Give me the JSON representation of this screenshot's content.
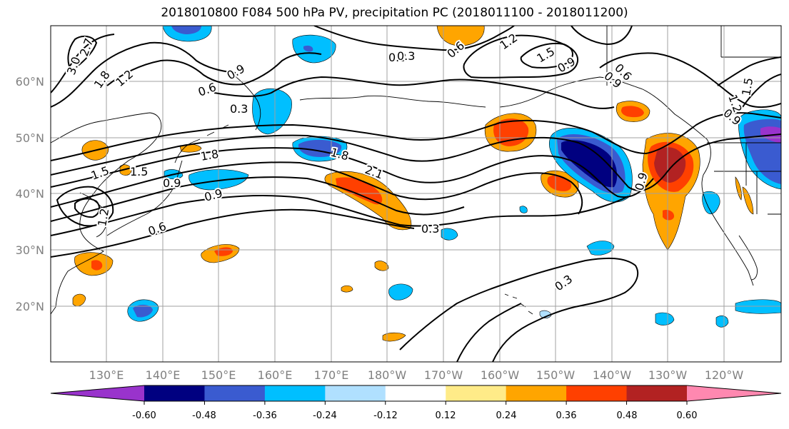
{
  "title": "2018010800 F084 500 hPa PV, precipitation PC (2018011100 - 2018011200)",
  "lat_labels": [
    "60°N",
    "50°N",
    "40°N",
    "30°N",
    "20°N"
  ],
  "lon_labels": [
    "130°E",
    "140°E",
    "150°E",
    "160°E",
    "170°E",
    "180°W",
    "170°W",
    "160°W",
    "150°W",
    "140°W",
    "130°W",
    "120°W"
  ],
  "contour_labels": [
    "3.0",
    "2.7",
    "1.8",
    "1.2",
    "0.9",
    "0.6",
    "0.3",
    "1.5",
    "1.8",
    "1.5",
    "1.2",
    "0.9",
    "0.9",
    "0.6",
    "0.3",
    "1.2",
    "1.5",
    "0.9",
    "0.6",
    "0.9",
    "1.2",
    "1.5",
    "0.9",
    "0.3",
    "1.8",
    "2.1",
    "0.3",
    "0.3",
    "0.9",
    "0.6"
  ],
  "colorbar": {
    "colors": [
      "#9933cc",
      "#000080",
      "#3a5bd0",
      "#00bfff",
      "#b0e0ff",
      "#ffffff",
      "#ffeb88",
      "#ffa500",
      "#ff4000",
      "#b22222",
      "#ff88b0"
    ],
    "tick_labels": [
      "-0.60",
      "-0.48",
      "-0.36",
      "-0.24",
      "-0.12",
      "0.12",
      "0.24",
      "0.36",
      "0.48",
      "0.60"
    ]
  }
}
